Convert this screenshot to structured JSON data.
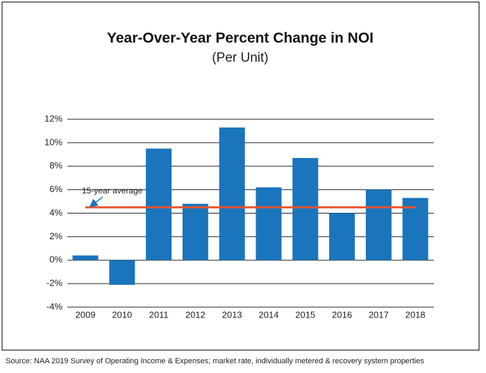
{
  "chart_data": {
    "type": "bar",
    "title": "Year-Over-Year Percent Change in NOI",
    "subtitle": "(Per Unit)",
    "categories": [
      "2009",
      "2010",
      "2011",
      "2012",
      "2013",
      "2014",
      "2015",
      "2016",
      "2017",
      "2018"
    ],
    "values": [
      0.4,
      -2.1,
      9.5,
      4.8,
      11.3,
      6.2,
      8.7,
      4.0,
      6.0,
      5.3
    ],
    "color": "#1a75bc",
    "average": 4.5,
    "average_label": "15-year average",
    "average_color": "#e8532b",
    "ylim": [
      -4,
      12
    ],
    "yticks": [
      {
        "value": -4,
        "label": "-4%"
      },
      {
        "value": -2,
        "label": "-2%"
      },
      {
        "value": 0,
        "label": "0%"
      },
      {
        "value": 2,
        "label": "2%"
      },
      {
        "value": 4,
        "label": "4%"
      },
      {
        "value": 6,
        "label": "6%"
      },
      {
        "value": 8,
        "label": "8%"
      },
      {
        "value": 10,
        "label": "10%"
      },
      {
        "value": 12,
        "label": "12%"
      }
    ],
    "grid": true,
    "source": "Source:  NAA 2019 Survey of Operating Income & Expenses; market rate, individually metered & recovery system properties"
  }
}
